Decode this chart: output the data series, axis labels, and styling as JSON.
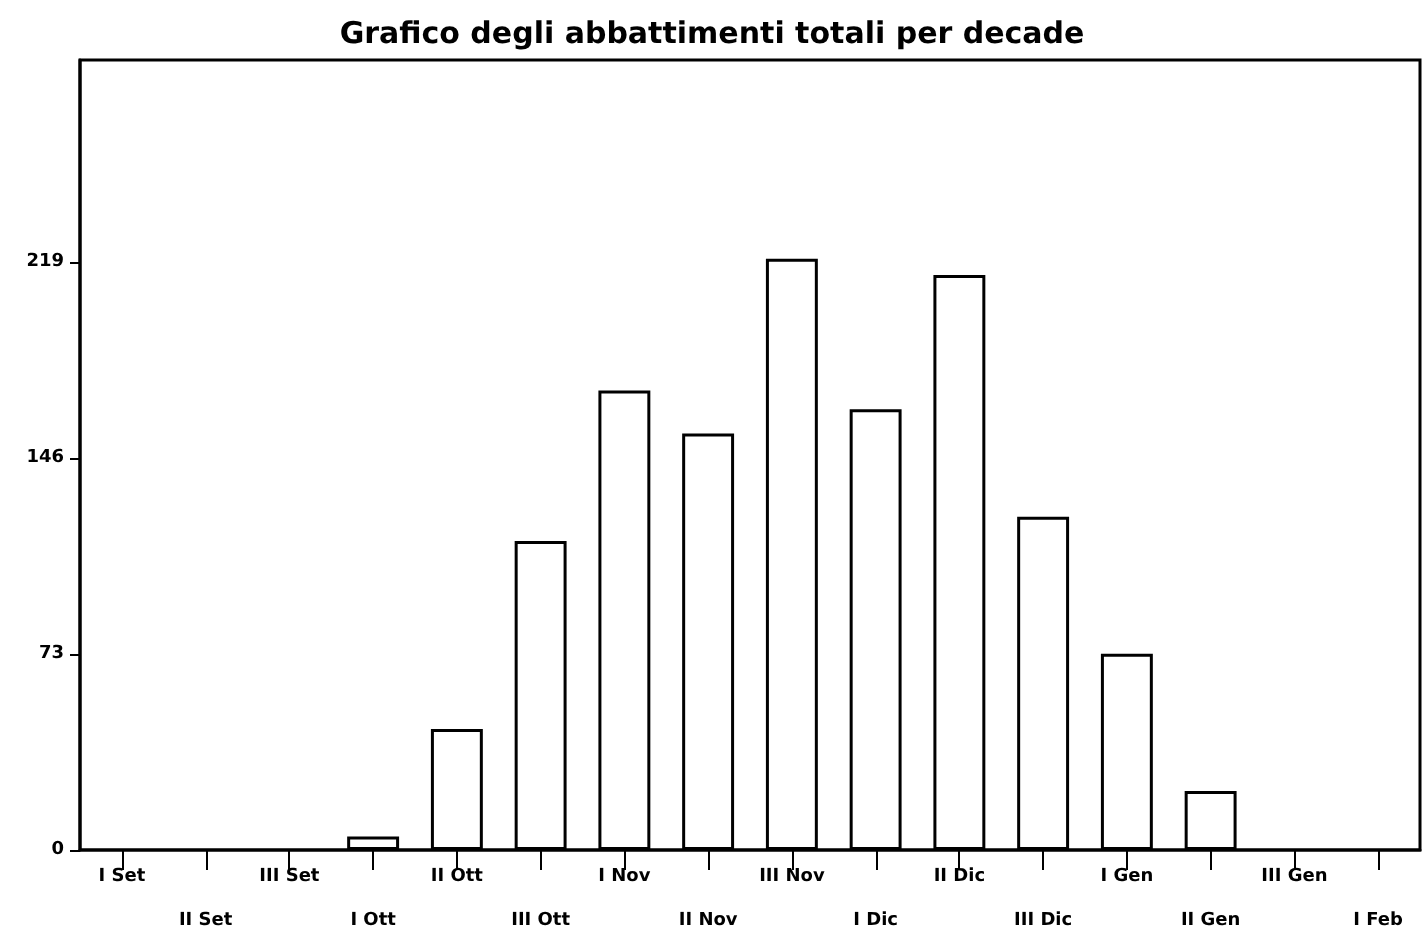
{
  "chart_data": {
    "type": "bar",
    "title": "Grafico degli abbattimenti totali per decade",
    "categories": [
      "I Set",
      "II Set",
      "III Set",
      "I Ott",
      "II Ott",
      "III Ott",
      "I Nov",
      "II Nov",
      "III Nov",
      "I Dic",
      "II Dic",
      "III Dic",
      "I Gen",
      "II Gen",
      "III Gen",
      "I Feb"
    ],
    "values": [
      0,
      0,
      0,
      5,
      45,
      115,
      171,
      155,
      220,
      164,
      214,
      124,
      73,
      22,
      0,
      0
    ],
    "color": "#ffffff",
    "ylim": [
      0,
      294
    ],
    "yticks": [
      0,
      73,
      146,
      219
    ],
    "grid": false
  }
}
